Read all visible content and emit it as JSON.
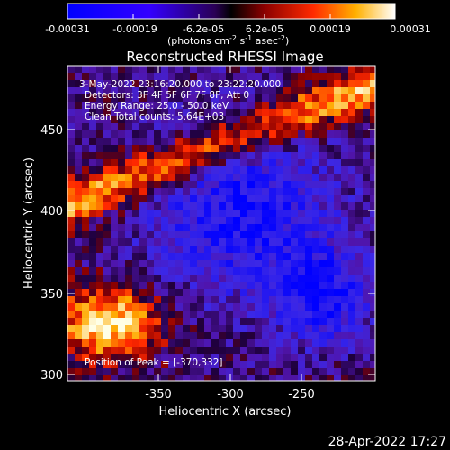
{
  "colorbar": {
    "ticks": [
      "-0.00031",
      "-0.00019",
      "-6.2e-05",
      "6.2e-05",
      "0.00019",
      "0.00031"
    ],
    "unit_main": "(photons cm",
    "unit_exp1": "-2",
    "unit_mid1": " s",
    "unit_exp2": "-1",
    "unit_mid2": " asec",
    "unit_exp3": "-2",
    "unit_end": ")"
  },
  "image": {
    "title": "Reconstructed RHESSI Image",
    "info_lines": [
      "3-May-2022 23:16:20.000 to 23:22:20.000",
      "Detectors: 3F 4F 5F 6F 7F 8F, Att 0",
      "Energy Range: 25.0 - 50.0 keV",
      "Clean     Total counts: 5.64E+03"
    ],
    "peak_label": "Position of Peak = [-370,332]"
  },
  "axes": {
    "xlabel": "Heliocentric X (arcsec)",
    "ylabel": "Heliocentric Y (arcsec)",
    "xticks": [
      "-350",
      "-300",
      "-250"
    ],
    "yticks": [
      "300",
      "350",
      "400",
      "450"
    ]
  },
  "footer": {
    "timestamp": "28-Apr-2022 17:27"
  }
}
